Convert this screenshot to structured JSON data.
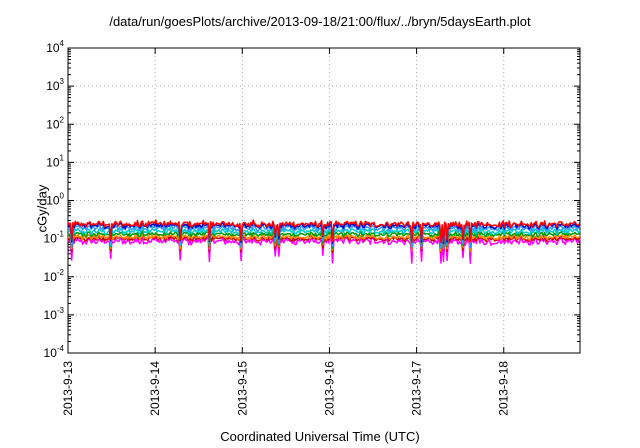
{
  "chart_data": {
    "type": "line",
    "title": "/data/run/goesPlots/archive/2013-09-18/21:00/flux/../bryn/5daysEarth.plot",
    "xlabel": "Coordinated Universal Time (UTC)",
    "ylabel": "cGy/day",
    "x_ticks": [
      "2013-9-13",
      "2013-9-14",
      "2013-9-15",
      "2013-9-16",
      "2013-9-17",
      "2013-9-18"
    ],
    "xlim": [
      "2013-09-13",
      "2013-09-18T21:00"
    ],
    "yscale": "log",
    "ylim": [
      0.0001,
      10000
    ],
    "y_tick_base": "10",
    "y_tick_exponents": [
      "-4",
      "-3",
      "-2",
      "-1",
      "0",
      "1",
      "2",
      "3",
      "4"
    ],
    "grid": true,
    "series": [
      {
        "color": "#ff0000",
        "level": 0.24,
        "amp": 0.13
      },
      {
        "color": "#0000cc",
        "level": 0.22,
        "amp": 0.13
      },
      {
        "color": "#3399ff",
        "level": 0.19,
        "amp": 0.14
      },
      {
        "color": "#00cccc",
        "level": 0.155,
        "amp": 0.12
      },
      {
        "color": "#009900",
        "level": 0.13,
        "amp": 0.1
      },
      {
        "color": "#ff8800",
        "level": 0.11,
        "amp": 0.1
      },
      {
        "color": "#cc0000",
        "level": 0.1,
        "amp": 0.1
      },
      {
        "color": "#ff00ff",
        "level": 0.085,
        "amp": 0.16
      }
    ]
  }
}
